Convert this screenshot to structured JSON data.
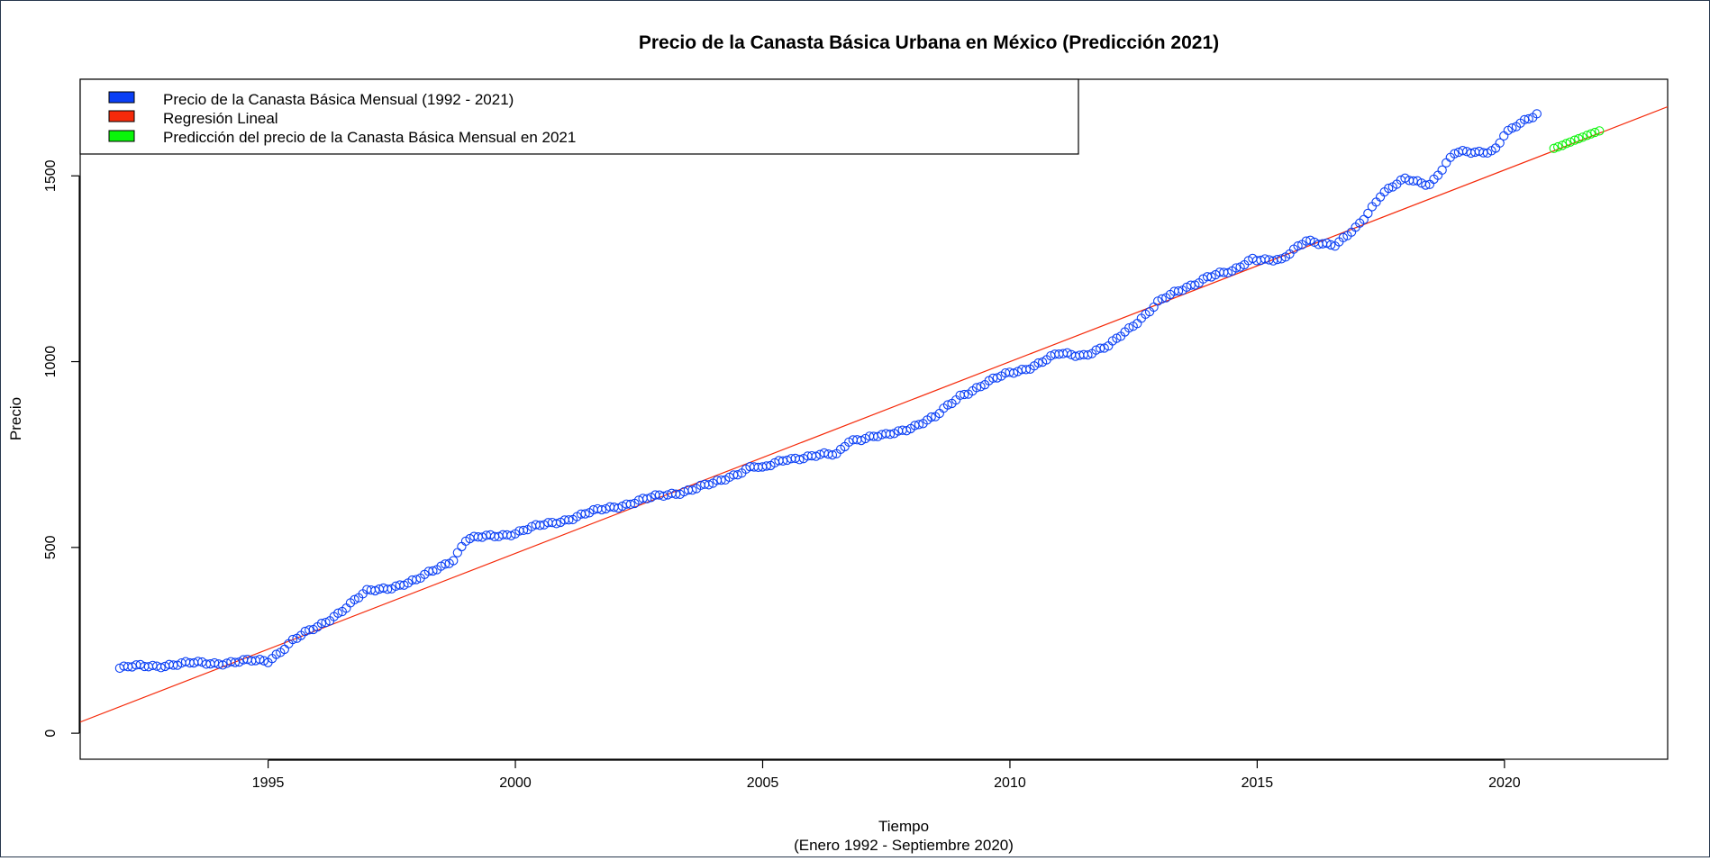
{
  "chart_data": {
    "type": "scatter",
    "title": "Precio de la Canasta Básica Urbana en México (Predicción 2021)",
    "xlabel": "Tiempo",
    "xlabel_sub": "(Enero 1992 - Septiembre 2020)",
    "ylabel": "Precio",
    "xlim": [
      1991.2,
      2023.3
    ],
    "ylim": [
      -70,
      1760
    ],
    "x_ticks": [
      1995,
      2000,
      2005,
      2010,
      2015,
      2020
    ],
    "x_tick_labels": [
      "1995",
      "2000",
      "2005",
      "2010",
      "2015",
      "2020"
    ],
    "y_ticks": [
      0,
      500,
      1000,
      1500
    ],
    "y_tick_labels": [
      "0",
      "500",
      "1000",
      "1500"
    ],
    "grid": false,
    "legend_position": "top-left",
    "legend": [
      {
        "label": "Precio de la Canasta Básica Mensual (1992 - 2021)",
        "color": "#0a3ff5"
      },
      {
        "label": "Regresión Lineal",
        "color": "#f52a0a"
      },
      {
        "label": "Predicción del precio de la Canasta Básica Mensual en 2021",
        "color": "#0af50a"
      }
    ],
    "series": [
      {
        "name": "Precio de la Canasta Básica Mensual (1992 - 2021)",
        "kind": "points",
        "color": "#0a3ff5",
        "start_year": 1992,
        "x_step": 0.0833,
        "anchor_x": [
          1992.0,
          1993.0,
          1994.0,
          1995.0,
          1995.5,
          1996.0,
          1997.0,
          1998.0,
          1998.75,
          1999.0,
          2000.0,
          2001.0,
          2002.0,
          2003.0,
          2004.0,
          2004.8,
          2005.0,
          2005.5,
          2006.5,
          2006.75,
          2007.5,
          2008.5,
          2009.0,
          2010.0,
          2010.5,
          2011.0,
          2011.5,
          2012.0,
          2013.0,
          2014.0,
          2014.5,
          2014.9,
          2015.5,
          2016.0,
          2016.6,
          2017.0,
          2017.5,
          2018.0,
          2018.5,
          2019.0,
          2019.8,
          2020.0,
          2020.67
        ],
        "anchor_y": [
          175,
          185,
          190,
          195,
          250,
          285,
          380,
          410,
          470,
          520,
          540,
          575,
          610,
          640,
          670,
          720,
          710,
          740,
          750,
          790,
          800,
          850,
          910,
          970,
          990,
          1020,
          1020,
          1040,
          1160,
          1230,
          1240,
          1280,
          1270,
          1330,
          1310,
          1360,
          1450,
          1490,
          1480,
          1560,
          1570,
          1610,
          1670
        ]
      },
      {
        "name": "Regresión Lineal",
        "kind": "line",
        "color": "#f52a0a",
        "x": [
          1991.2,
          2023.3
        ],
        "y": [
          30,
          1686
        ]
      },
      {
        "name": "Predicción del precio de la Canasta Básica Mensual en 2021",
        "kind": "points",
        "color": "#0af50a",
        "x": [
          2021.0,
          2021.08,
          2021.17,
          2021.25,
          2021.33,
          2021.42,
          2021.5,
          2021.58,
          2021.67,
          2021.75,
          2021.83,
          2021.92
        ],
        "y": [
          1574,
          1578,
          1582,
          1587,
          1591,
          1596,
          1600,
          1604,
          1609,
          1613,
          1617,
          1621
        ]
      }
    ]
  }
}
